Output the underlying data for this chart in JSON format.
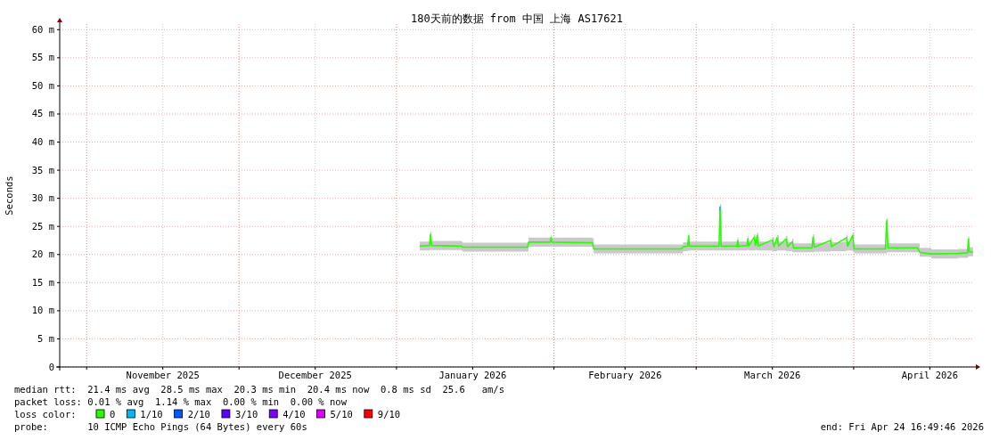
{
  "chart_data": {
    "type": "line",
    "title": "180天前的数据 from 中国 上海 AS17621",
    "ylabel": "Seconds",
    "xlim": [
      "2025-10-26T16:49",
      "2026-04-24T16:49"
    ],
    "xticks": [
      {
        "value": "2025-11-01",
        "label": null
      },
      {
        "value": "2025-11-16",
        "label": "November 2025"
      },
      {
        "value": "2025-12-01",
        "label": null
      },
      {
        "value": "2025-12-16",
        "label": "December 2025"
      },
      {
        "value": "2026-01-01",
        "label": null
      },
      {
        "value": "2026-01-16",
        "label": "January 2026"
      },
      {
        "value": "2026-02-01",
        "label": null
      },
      {
        "value": "2026-02-15",
        "label": "February 2026"
      },
      {
        "value": "2026-03-01",
        "label": null
      },
      {
        "value": "2026-03-16",
        "label": "March 2026"
      },
      {
        "value": "2026-04-01",
        "label": null
      },
      {
        "value": "2026-04-16",
        "label": "April 2026"
      }
    ],
    "ylim": [
      0,
      61
    ],
    "yticks": [
      {
        "value": 0,
        "label": "0"
      },
      {
        "value": 5,
        "label": "5 m"
      },
      {
        "value": 10,
        "label": "10 m"
      },
      {
        "value": 15,
        "label": "15 m"
      },
      {
        "value": 20,
        "label": "20 m"
      },
      {
        "value": 25,
        "label": "25 m"
      },
      {
        "value": 30,
        "label": "30 m"
      },
      {
        "value": 35,
        "label": "35 m"
      },
      {
        "value": 40,
        "label": "40 m"
      },
      {
        "value": 45,
        "label": "45 m"
      },
      {
        "value": 50,
        "label": "50 m"
      },
      {
        "value": 55,
        "label": "55 m"
      },
      {
        "value": 60,
        "label": "60 m"
      }
    ],
    "grid": true,
    "legend": "bottom",
    "legend_title": "loss color:",
    "line_style": "solid",
    "series": [
      {
        "name": "0",
        "color": "#26ff00",
        "x": [
          "2026-01-05T14:00",
          "2026-01-07T12:00",
          "2026-01-07T17:00",
          "2026-01-07T22:00",
          "2026-01-13T19:00",
          "2026-01-14T00:00",
          "2026-01-26T19:00",
          "2026-01-27T00:00",
          "2026-01-31T06:00",
          "2026-01-31T10:00",
          "2026-01-31T14:00",
          "2026-02-08T14:00",
          "2026-02-08T20:00",
          "2026-02-26T02:00",
          "2026-02-26T10:00",
          "2026-02-27T08:00",
          "2026-02-27T12:00",
          "2026-02-27T16:00",
          "2026-03-05T12:00",
          "2026-03-05T17:00",
          "2026-03-05T22:00",
          "2026-03-09T00:00",
          "2026-03-09T04:00",
          "2026-03-09T08:00",
          "2026-03-11T00:00",
          "2026-03-11T04:00",
          "2026-03-11T08:00",
          "2026-03-12T10:00",
          "2026-03-12T16:00",
          "2026-03-13T00:00",
          "2026-03-13T06:00",
          "2026-03-16T00:00",
          "2026-03-16T08:00",
          "2026-03-16T22:00",
          "2026-03-17T06:00",
          "2026-03-18T17:00",
          "2026-03-19T00:00",
          "2026-03-19T22:00",
          "2026-03-20T04:00",
          "2026-03-23T19:00",
          "2026-03-24T00:00",
          "2026-03-24T06:00",
          "2026-03-27T10:00",
          "2026-03-27T16:00",
          "2026-03-30T14:00",
          "2026-03-30T20:00",
          "2026-03-31T19:00",
          "2026-04-01T02:00",
          "2026-04-07T06:00",
          "2026-04-07T12:00",
          "2026-04-07T18:00",
          "2026-04-13T14:00",
          "2026-04-14T00:00",
          "2026-04-16T07:00",
          "2026-04-21T12:00",
          "2026-04-23T10:00",
          "2026-04-23T14:00",
          "2026-04-23T18:00",
          "2026-04-24T12:00"
        ],
        "values": [
          21.5,
          21.6,
          23.6,
          21.6,
          21.5,
          21.3,
          21.3,
          22.2,
          22.2,
          23.0,
          22.2,
          22.1,
          21.0,
          21.0,
          21.4,
          21.5,
          23.3,
          21.5,
          21.5,
          28.5,
          21.5,
          21.5,
          22.5,
          21.5,
          21.6,
          22.8,
          21.5,
          23.1,
          21.6,
          23.4,
          21.5,
          22.6,
          21.4,
          23.0,
          21.5,
          22.8,
          21.4,
          22.3,
          21.2,
          21.2,
          23.1,
          21.3,
          22.5,
          21.4,
          23.0,
          21.5,
          23.4,
          21.0,
          21.0,
          26.0,
          21.2,
          21.2,
          20.4,
          20.1,
          20.2,
          20.3,
          22.8,
          20.5,
          20.4
        ],
        "lower": [
          20.7,
          20.8,
          20.8,
          20.8,
          20.7,
          20.5,
          20.5,
          21.4,
          21.4,
          21.4,
          21.4,
          21.3,
          20.2,
          20.2,
          20.6,
          20.7,
          20.7,
          20.7,
          20.7,
          20.7,
          20.7,
          20.7,
          20.7,
          20.7,
          20.8,
          20.8,
          20.7,
          20.7,
          20.8,
          20.7,
          20.7,
          20.6,
          20.6,
          20.7,
          20.7,
          20.6,
          20.6,
          20.4,
          20.4,
          20.4,
          20.4,
          20.5,
          20.6,
          20.6,
          20.7,
          20.7,
          20.6,
          20.2,
          20.2,
          20.4,
          20.4,
          20.4,
          19.6,
          19.3,
          19.4,
          19.5,
          19.7,
          19.7,
          19.6
        ],
        "upper": [
          22.3,
          22.4,
          24.1,
          22.4,
          22.3,
          22.1,
          22.1,
          23.0,
          23.0,
          23.5,
          23.0,
          22.9,
          21.8,
          21.8,
          22.2,
          22.3,
          23.8,
          22.3,
          22.3,
          29.0,
          22.3,
          22.3,
          23.0,
          22.3,
          22.4,
          23.3,
          22.3,
          23.6,
          22.4,
          23.9,
          22.3,
          23.1,
          22.2,
          23.5,
          22.3,
          23.3,
          22.2,
          22.8,
          22.0,
          22.0,
          23.6,
          22.1,
          23.0,
          22.2,
          23.5,
          22.3,
          23.9,
          21.8,
          21.8,
          26.5,
          22.0,
          22.0,
          21.2,
          20.9,
          21.0,
          21.1,
          23.3,
          21.3,
          21.2
        ]
      },
      {
        "name": "1/10",
        "color": "#00b8ff",
        "x": [
          "2026-03-05T15:00",
          "2026-03-05T17:00"
        ],
        "values": [
          27.8,
          28.5
        ]
      },
      {
        "name": "2/10",
        "color": "#0059ff"
      },
      {
        "name": "3/10",
        "color": "#5e00ff"
      },
      {
        "name": "4/10",
        "color": "#7e00ff"
      },
      {
        "name": "5/10",
        "color": "#dd00ff"
      },
      {
        "name": "9/10",
        "color": "#ff0000"
      }
    ],
    "annotations": [
      "median rtt:  21.4 ms avg  28.5 ms max  20.3 ms min  20.4 ms now  0.8 ms sd  25.6   am/s",
      "packet loss: 0.01 % avg  1.14 % max  0.00 % min  0.00 % now",
      "probe:       10 ICMP Echo Pings (64 Bytes) every 60s",
      "end: Fri Apr 24 16:49:46 2026"
    ]
  }
}
